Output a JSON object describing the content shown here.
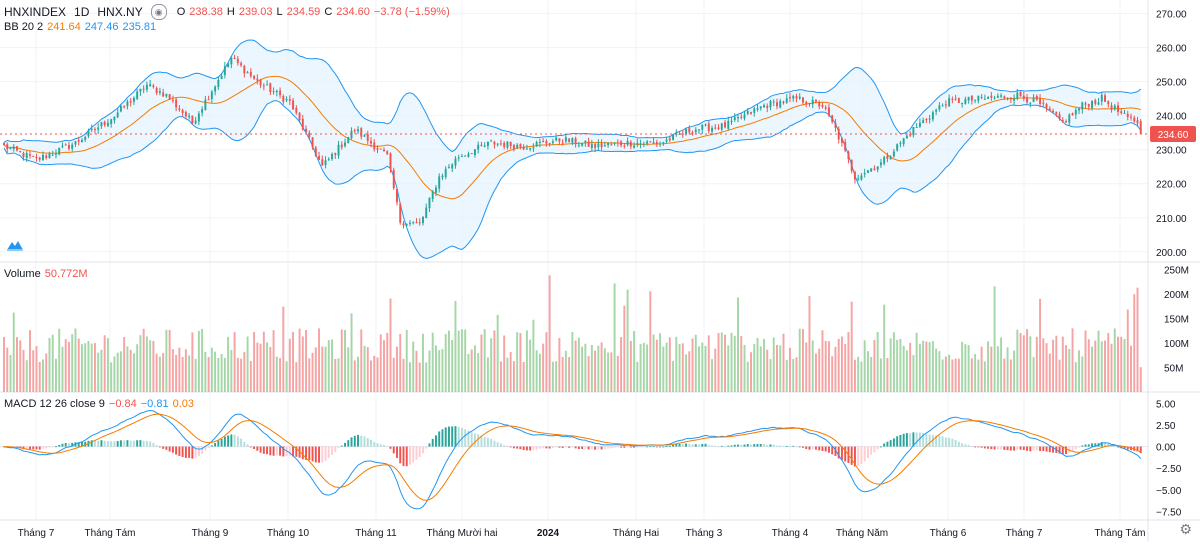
{
  "header": {
    "symbol": "HNXINDEX",
    "interval": "1D",
    "exchange": "HNX.NY",
    "o_label": "O",
    "o": "238.38",
    "h_label": "H",
    "h": "239.03",
    "l_label": "L",
    "l": "234.59",
    "c_label": "C",
    "c": "234.60",
    "change": "−3.78 (−1.59%)"
  },
  "bb": {
    "label": "BB 20 2",
    "basis": "241.64",
    "upper": "247.46",
    "lower": "235.81"
  },
  "volume": {
    "label": "Volume",
    "value": "50.772M"
  },
  "macd": {
    "label": "MACD 12 26 close 9",
    "hist": "−0.84",
    "macd": "−0.81",
    "signal": "0.03"
  },
  "colors": {
    "up": "#26a69a",
    "down": "#ef5350",
    "upVol": "#a5d6a7",
    "downVol": "#f5a3a3",
    "basis": "#f57c00",
    "band": "#2196f3",
    "bandFill": "#e3f2fd",
    "macd": "#2196f3",
    "signal": "#f57c00",
    "histUpStrong": "#26a69a",
    "histUpWeak": "#b2dfdb",
    "histDnStrong": "#ef5350",
    "histDnWeak": "#ffcdd2"
  },
  "last_price_label": "234.60",
  "icons": [
    "eye-icon",
    "tradingview-logo-icon",
    "gear-icon"
  ],
  "chart_data": [
    {
      "type": "candlestick",
      "name": "price",
      "yticks": [
        "270.00",
        "260.00",
        "250.00",
        "240.00",
        "230.00",
        "220.00",
        "210.00",
        "200.00"
      ],
      "ylim": [
        197,
        274
      ],
      "x_labels": [
        "Tháng 7",
        "Tháng Tám",
        "Tháng 9",
        "Tháng 10",
        "Tháng 11",
        "Tháng Mười hai",
        "2024",
        "Tháng Hai",
        "Tháng 3",
        "Tháng 4",
        "Tháng Năm",
        "Tháng 6",
        "Tháng 7",
        "Tháng Tám"
      ],
      "anchors": [
        [
          0,
          231
        ],
        [
          10,
          227
        ],
        [
          22,
          232
        ],
        [
          34,
          240
        ],
        [
          44,
          249
        ],
        [
          50,
          246
        ],
        [
          58,
          238
        ],
        [
          70,
          257
        ],
        [
          78,
          250
        ],
        [
          88,
          244
        ],
        [
          98,
          225
        ],
        [
          108,
          236
        ],
        [
          118,
          228
        ],
        [
          122,
          209
        ],
        [
          128,
          208
        ],
        [
          134,
          222
        ],
        [
          140,
          228
        ],
        [
          150,
          232
        ],
        [
          160,
          231
        ],
        [
          172,
          233
        ],
        [
          182,
          231
        ],
        [
          192,
          232
        ],
        [
          202,
          232
        ],
        [
          212,
          236
        ],
        [
          222,
          237
        ],
        [
          234,
          243
        ],
        [
          244,
          245
        ],
        [
          252,
          243
        ],
        [
          256,
          236
        ],
        [
          262,
          222
        ],
        [
          270,
          226
        ],
        [
          280,
          236
        ],
        [
          290,
          244
        ],
        [
          302,
          245
        ],
        [
          312,
          246
        ],
        [
          318,
          244
        ],
        [
          326,
          238
        ],
        [
          332,
          243
        ],
        [
          338,
          245
        ],
        [
          346,
          239
        ],
        [
          349,
          238.38
        ],
        [
          350,
          234.6
        ]
      ],
      "last": {
        "open": 238.38,
        "high": 239.03,
        "low": 234.59,
        "close": 234.6
      }
    },
    {
      "type": "bar",
      "name": "volume",
      "yticks": [
        "250M",
        "200M",
        "150M",
        "100M",
        "50M"
      ],
      "ylim": [
        0,
        255
      ],
      "last": 50.772
    },
    {
      "type": "line",
      "name": "macd",
      "yticks": [
        "5.00",
        "2.50",
        "0.00",
        "−2.50",
        "−5.00",
        "−7.50"
      ],
      "ylim": [
        -8.5,
        6.2
      ],
      "last": {
        "macd": -0.81,
        "signal": 0.03,
        "hist": -0.84
      }
    }
  ]
}
